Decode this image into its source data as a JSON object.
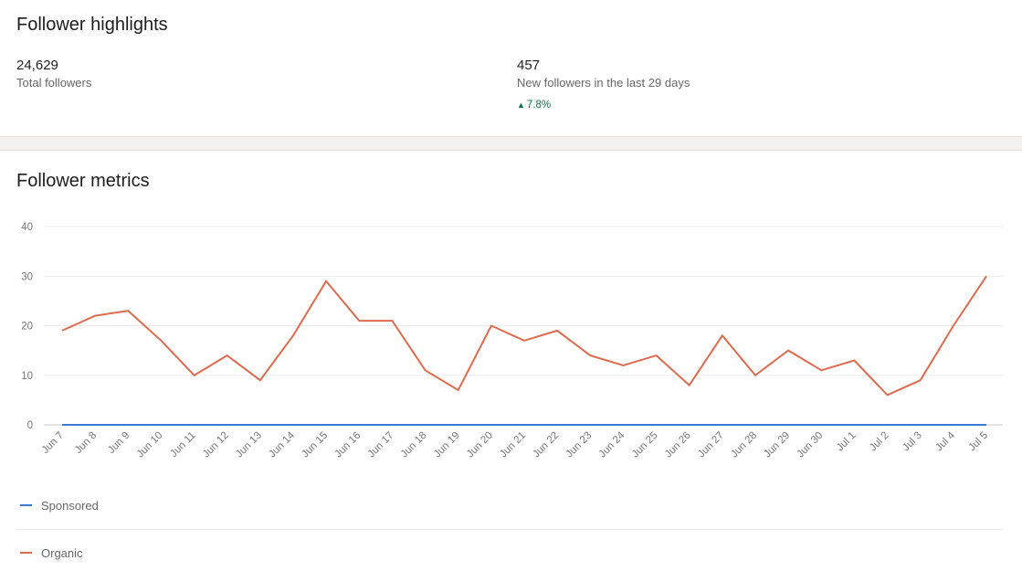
{
  "highlights": {
    "title": "Follower highlights",
    "total": {
      "value": "24,629",
      "label": "Total followers"
    },
    "new": {
      "value": "457",
      "label": "New followers in the last 29 days",
      "change": "7.8%"
    }
  },
  "metrics": {
    "title": "Follower metrics"
  },
  "colors": {
    "organic": "#dd6b4d",
    "sponsored": "#3a7bd5",
    "positive": "#057642"
  },
  "chart_data": {
    "type": "line",
    "title": "Follower metrics",
    "xlabel": "",
    "ylabel": "",
    "ylim": [
      0,
      40
    ],
    "yticks": [
      0,
      10,
      20,
      30,
      40
    ],
    "grid": true,
    "legend_position": "bottom",
    "categories": [
      "Jun 7",
      "Jun 8",
      "Jun 9",
      "Jun 10",
      "Jun 11",
      "Jun 12",
      "Jun 13",
      "Jun 14",
      "Jun 15",
      "Jun 16",
      "Jun 17",
      "Jun 18",
      "Jun 19",
      "Jun 20",
      "Jun 21",
      "Jun 22",
      "Jun 23",
      "Jun 24",
      "Jun 25",
      "Jun 26",
      "Jun 27",
      "Jun 28",
      "Jun 29",
      "Jun 30",
      "Jul 1",
      "Jul 2",
      "Jul 3",
      "Jul 4",
      "Jul 5"
    ],
    "series": [
      {
        "name": "Sponsored",
        "color": "#3a7bd5",
        "values": [
          0,
          0,
          0,
          0,
          0,
          0,
          0,
          0,
          0,
          0,
          0,
          0,
          0,
          0,
          0,
          0,
          0,
          0,
          0,
          0,
          0,
          0,
          0,
          0,
          0,
          0,
          0,
          0,
          0
        ]
      },
      {
        "name": "Organic",
        "color": "#dd6b4d",
        "values": [
          19,
          22,
          23,
          17,
          10,
          14,
          9,
          18,
          29,
          21,
          21,
          11,
          7,
          20,
          17,
          19,
          14,
          12,
          14,
          8,
          18,
          10,
          15,
          11,
          13,
          6,
          9,
          20,
          30
        ]
      }
    ]
  }
}
